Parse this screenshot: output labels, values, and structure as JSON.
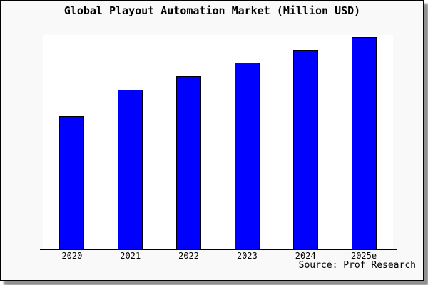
{
  "chart_data": {
    "type": "bar",
    "title": "Global Playout Automation Market (Million USD)",
    "categories": [
      "2020",
      "2021",
      "2022",
      "2023",
      "2024",
      "2025e"
    ],
    "values": [
      62.9,
      75.3,
      81.6,
      88.0,
      94.0,
      100.0
    ],
    "values_basis": "relative index estimated from bar heights, 2025e = 100; chart displays no y-axis tick labels or gridlines",
    "ylim": [
      0,
      101
    ],
    "xlabel": "",
    "ylabel": "",
    "grid": false,
    "legend": false,
    "source": "Source: Prof Research",
    "colors": {
      "bar_fill": "#0000ff",
      "bar_edge": "#000000",
      "figure_bg": "#f9f9f9",
      "plot_bg": "#ffffff",
      "frame_border": "#000000",
      "text": "#000000",
      "shadow": "#8f8f8f"
    }
  }
}
